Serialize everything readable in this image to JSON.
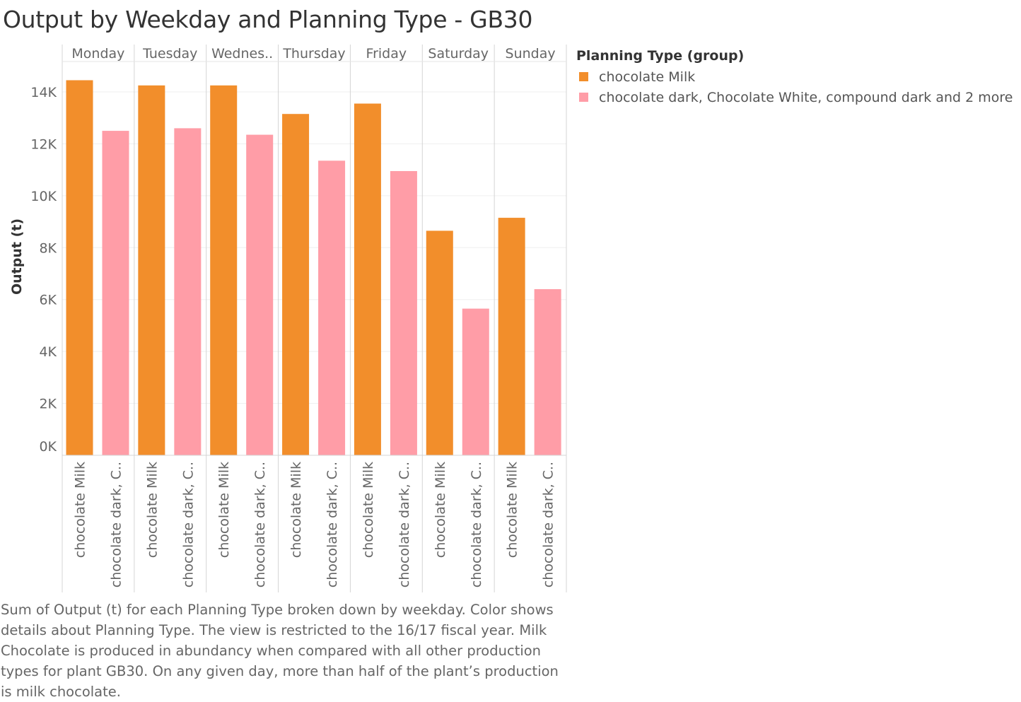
{
  "title": "Output by Weekday and Planning Type - GB30",
  "legend": {
    "title": "Planning Type (group)",
    "items": [
      {
        "label": "chocolate Milk",
        "color": "#f28e2b"
      },
      {
        "label": "chocolate dark, Chocolate White, compound dark and 2 more",
        "color": "#ff9da7"
      }
    ]
  },
  "caption": "Sum of Output (t) for each Planning Type broken down by weekday.  Color shows details about Planning Type. The view is restricted to the 16/17 fiscal year. Milk Chocolate is produced in abundancy when compared with all other production types for plant GB30. On any given day, more than half of the plant’s production is milk chocolate.",
  "chart_data": {
    "type": "bar",
    "ylabel": "Output (t)",
    "xlabel": "",
    "ylim": [
      0,
      15000
    ],
    "yticks": [
      0,
      2000,
      4000,
      6000,
      8000,
      10000,
      12000,
      14000
    ],
    "ytick_labels": [
      "0K",
      "2K",
      "4K",
      "6K",
      "8K",
      "10K",
      "12K",
      "14K"
    ],
    "groups": [
      "Monday",
      "Tuesday",
      "Wednes..",
      "Thursday",
      "Friday",
      "Saturday",
      "Sunday"
    ],
    "category_labels": [
      "chocolate Milk",
      "chocolate dark, C.."
    ],
    "series": [
      {
        "name": "chocolate Milk",
        "color": "#f28e2b",
        "values": [
          14450,
          14250,
          14250,
          13150,
          13550,
          8650,
          9150
        ]
      },
      {
        "name": "chocolate dark, Chocolate White, compound dark and 2 more",
        "color": "#ff9da7",
        "values": [
          12500,
          12600,
          12350,
          11350,
          10950,
          5650,
          6400
        ]
      }
    ],
    "grid": true,
    "legend_position": "right"
  }
}
